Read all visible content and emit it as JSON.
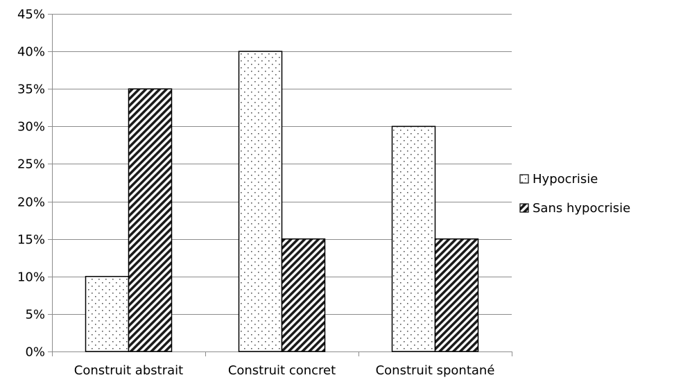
{
  "chart_data": {
    "type": "bar",
    "categories": [
      "Construit abstrait",
      "Construit concret",
      "Construit spontané"
    ],
    "series": [
      {
        "name": "Hypocrisie",
        "values": [
          10,
          40,
          30
        ],
        "pattern": "dots"
      },
      {
        "name": "Sans hypocrisie",
        "values": [
          35,
          15,
          15
        ],
        "pattern": "diagonal-hatch"
      }
    ],
    "ylim": [
      0,
      45
    ],
    "yticks": [
      0,
      5,
      10,
      15,
      20,
      25,
      30,
      35,
      40,
      45
    ],
    "ytick_format": "percent",
    "grid": true,
    "legend_position": "right",
    "colors": {
      "bar_stroke": "#000000",
      "grid": "#8c8c8c",
      "background": "#ffffff"
    }
  }
}
